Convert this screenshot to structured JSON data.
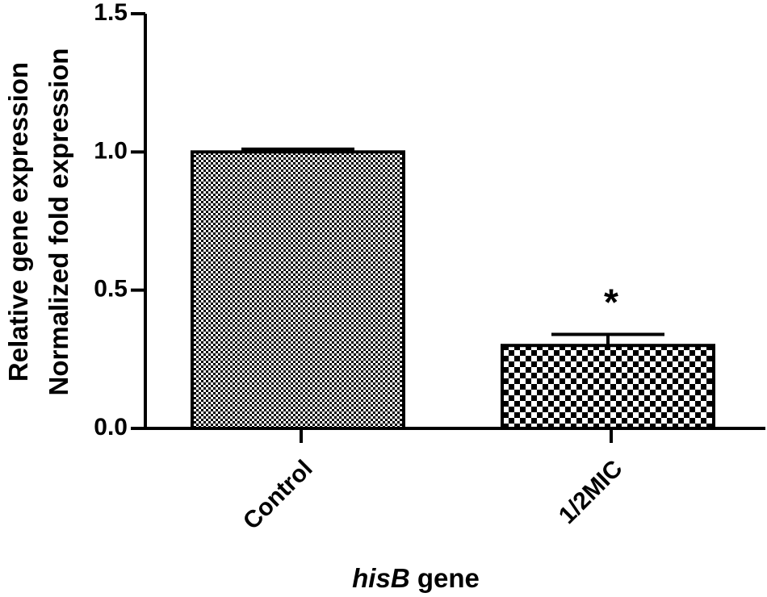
{
  "chart_data": {
    "type": "bar",
    "categories": [
      "Control",
      "1/2MIC"
    ],
    "values": [
      1.0,
      0.3
    ],
    "errors": [
      0.01,
      0.04
    ],
    "annotations": [
      null,
      "*"
    ],
    "color": "#000000",
    "ylim": [
      0,
      1.5
    ],
    "yticks": [
      {
        "value": 0,
        "label": "0.0"
      },
      {
        "value": 0.5,
        "label": "0.5"
      },
      {
        "value": 1.0,
        "label": "1.0"
      },
      {
        "value": 1.5,
        "label": "1.5"
      }
    ],
    "ylabel": [
      "Relative gene expression",
      "Normalized fold expression"
    ],
    "xlabel": [
      "hisB",
      "gene"
    ]
  }
}
